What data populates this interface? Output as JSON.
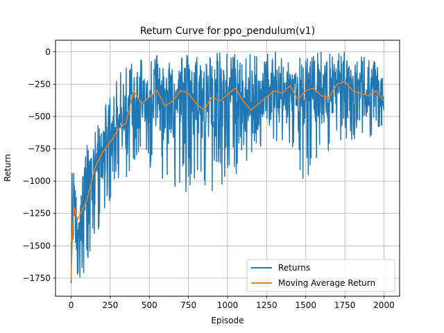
{
  "chart_data": {
    "type": "line",
    "title": "Return Curve for ppo_pendulum(v1)",
    "xlabel": "Episode",
    "ylabel": "Return",
    "xlim": [
      -100,
      2100
    ],
    "ylim": [
      -1890,
      90
    ],
    "xticks": [
      0,
      250,
      500,
      750,
      1000,
      1250,
      1500,
      1750,
      2000
    ],
    "yticks": [
      0,
      -250,
      -500,
      -750,
      -1000,
      -1250,
      -1500,
      -1750
    ],
    "grid": true,
    "legend": {
      "position": "lower-right"
    },
    "series": [
      {
        "name": "Returns",
        "color": "#1f77b4",
        "kind": "raw",
        "envelope": {
          "x": [
            0,
            50,
            100,
            150,
            200,
            250,
            300,
            350,
            400,
            500,
            600,
            700,
            800,
            900,
            1000,
            1100,
            1200,
            1300,
            1400,
            1500,
            1600,
            1700,
            1800,
            1900,
            2000
          ],
          "top": [
            -870,
            -820,
            -700,
            -600,
            -450,
            -320,
            -200,
            -50,
            0,
            0,
            0,
            0,
            0,
            0,
            0,
            0,
            0,
            0,
            0,
            0,
            0,
            0,
            0,
            0,
            -120
          ],
          "bottom": [
            -1790,
            -1780,
            -1700,
            -1500,
            -1250,
            -1200,
            -1150,
            -1050,
            -850,
            -900,
            -1000,
            -1100,
            -1200,
            -1150,
            -1050,
            -900,
            -850,
            -700,
            -750,
            -1100,
            -800,
            -750,
            -700,
            -650,
            -700
          ]
        }
      },
      {
        "name": "Moving Average Return",
        "color": "#ff7f0e",
        "kind": "smoothed",
        "points": {
          "x": [
            0,
            10,
            20,
            40,
            60,
            80,
            100,
            120,
            150,
            200,
            250,
            300,
            350,
            400,
            450,
            500,
            550,
            600,
            650,
            700,
            750,
            800,
            850,
            900,
            950,
            1000,
            1050,
            1100,
            1150,
            1200,
            1250,
            1300,
            1350,
            1400,
            1450,
            1500,
            1550,
            1600,
            1650,
            1700,
            1750,
            1800,
            1850,
            1900,
            1950,
            2000
          ],
          "y": [
            -1760,
            -1350,
            -1200,
            -1300,
            -1250,
            -1200,
            -1150,
            -1050,
            -900,
            -780,
            -700,
            -600,
            -550,
            -300,
            -400,
            -350,
            -300,
            -420,
            -380,
            -300,
            -320,
            -400,
            -450,
            -350,
            -380,
            -330,
            -280,
            -380,
            -450,
            -400,
            -350,
            -300,
            -320,
            -260,
            -370,
            -300,
            -280,
            -340,
            -350,
            -250,
            -230,
            -300,
            -320,
            -340,
            -300,
            -380
          ]
        }
      }
    ]
  }
}
